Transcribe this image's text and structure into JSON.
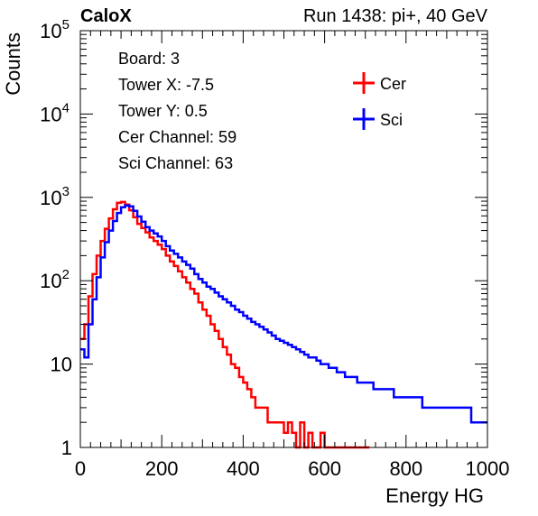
{
  "chart_data": {
    "type": "line",
    "header_left": "CaloX",
    "header_right": "Run 1438: pi+, 40 GeV",
    "xlabel": "Energy HG",
    "ylabel": "Counts",
    "xlim": [
      0,
      1000
    ],
    "ylim": [
      1,
      100000
    ],
    "y_scale": "log",
    "x_ticks": [
      "0",
      "200",
      "400",
      "600",
      "800",
      "1000"
    ],
    "y_ticks": [
      {
        "value": 1,
        "base": "1",
        "exp": ""
      },
      {
        "value": 10,
        "base": "10",
        "exp": ""
      },
      {
        "value": 100,
        "base": "10",
        "exp": "2"
      },
      {
        "value": 1000,
        "base": "10",
        "exp": "3"
      },
      {
        "value": 10000,
        "base": "10",
        "exp": "4"
      },
      {
        "value": 100000,
        "base": "10",
        "exp": "5"
      }
    ],
    "info_lines": [
      "Board: 3",
      "Tower X: -7.5",
      "Tower Y: 0.5",
      "Cer Channel: 59",
      "Sci Channel: 63"
    ],
    "legend_position": "top-right",
    "series": [
      {
        "name": "Cer",
        "color": "#ff0000",
        "x": [
          0,
          10,
          20,
          30,
          40,
          50,
          60,
          70,
          80,
          90,
          100,
          110,
          120,
          130,
          140,
          150,
          160,
          170,
          180,
          190,
          200,
          210,
          220,
          230,
          240,
          250,
          260,
          270,
          280,
          290,
          300,
          310,
          320,
          330,
          340,
          350,
          360,
          370,
          380,
          390,
          400,
          410,
          420,
          430,
          440,
          450,
          460,
          470,
          480,
          490,
          500,
          510,
          520,
          530,
          540,
          550,
          560,
          570,
          580,
          590,
          600,
          610,
          620,
          630,
          640,
          650,
          660,
          670,
          680,
          690,
          700
        ],
        "y": [
          20,
          30,
          65,
          120,
          200,
          300,
          420,
          560,
          720,
          860,
          880,
          820,
          700,
          580,
          480,
          430,
          380,
          330,
          300,
          270,
          240,
          200,
          170,
          150,
          130,
          110,
          95,
          80,
          70,
          55,
          45,
          38,
          30,
          25,
          20,
          16,
          13,
          10,
          9,
          7,
          6,
          5,
          4,
          3,
          3,
          3,
          2,
          2,
          2,
          2,
          1.5,
          2,
          1.5,
          1,
          2,
          1,
          1.5,
          1,
          1,
          1.5,
          1,
          1,
          1,
          1,
          1,
          1,
          1,
          1,
          1,
          1,
          1
        ]
      },
      {
        "name": "Sci",
        "color": "#0000ff",
        "x": [
          0,
          10,
          20,
          30,
          40,
          50,
          60,
          70,
          80,
          90,
          100,
          110,
          120,
          130,
          140,
          150,
          160,
          170,
          180,
          190,
          200,
          210,
          220,
          230,
          240,
          250,
          260,
          270,
          280,
          290,
          300,
          310,
          320,
          330,
          340,
          350,
          360,
          370,
          380,
          390,
          400,
          410,
          420,
          430,
          440,
          450,
          460,
          470,
          480,
          490,
          500,
          510,
          520,
          530,
          540,
          550,
          560,
          570,
          580,
          590,
          600,
          610,
          620,
          630,
          640,
          650,
          660,
          670,
          680,
          690,
          700,
          710,
          720,
          730,
          740,
          750,
          760,
          770,
          780,
          790,
          800,
          810,
          820,
          830,
          840,
          850,
          860,
          870,
          880,
          890,
          900,
          910,
          920,
          930,
          940,
          950,
          960,
          970,
          980,
          990,
          1000
        ],
        "y": [
          15,
          12,
          30,
          60,
          110,
          190,
          290,
          400,
          520,
          650,
          760,
          800,
          780,
          690,
          590,
          510,
          440,
          400,
          370,
          340,
          300,
          260,
          230,
          210,
          190,
          170,
          155,
          140,
          120,
          105,
          95,
          85,
          80,
          72,
          65,
          60,
          55,
          50,
          45,
          42,
          38,
          35,
          32,
          30,
          28,
          26,
          24,
          22,
          20,
          19,
          18,
          17,
          16,
          15,
          14,
          13,
          12,
          12,
          11,
          10,
          10,
          9,
          9,
          8,
          8,
          7,
          7,
          7,
          6,
          6,
          6,
          6,
          5,
          5,
          5,
          5,
          5,
          4,
          4,
          4,
          4,
          4,
          4,
          4,
          3,
          3,
          3,
          3,
          3,
          3,
          3,
          3,
          3,
          3,
          3,
          3,
          2,
          2,
          2,
          2,
          2
        ]
      }
    ]
  }
}
